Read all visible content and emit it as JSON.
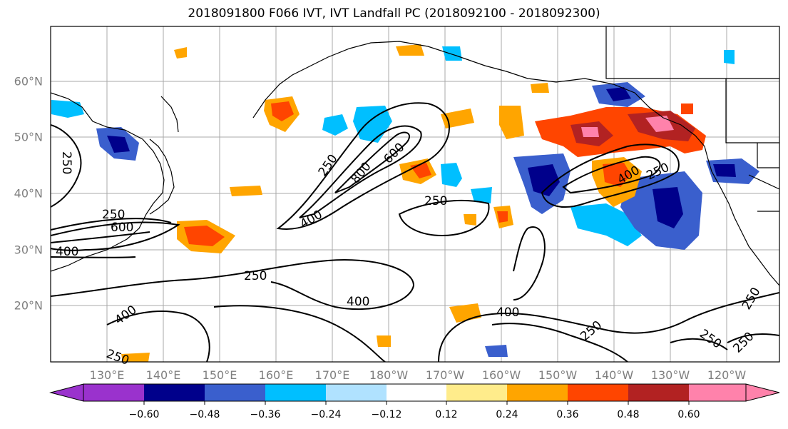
{
  "title": "2018091800 F066 IVT, IVT Landfall PC (2018092100 - 2018092300)",
  "lat_labels": [
    "60°N",
    "50°N",
    "40°N",
    "30°N",
    "20°N"
  ],
  "lon_labels": [
    "130°E",
    "140°E",
    "150°E",
    "160°E",
    "170°E",
    "180°W",
    "170°W",
    "160°W",
    "150°W",
    "140°W",
    "130°W",
    "120°W"
  ],
  "contour_labels": [
    "250",
    "400",
    "600",
    "800"
  ],
  "colorbar": {
    "ticks": [
      "−0.60",
      "−0.48",
      "−0.36",
      "−0.24",
      "−0.12",
      "0.12",
      "0.24",
      "0.36",
      "0.48",
      "0.60"
    ],
    "colors": [
      "#9a32cd",
      "#00008b",
      "#3a5fcd",
      "#00bfff",
      "#b0e2ff",
      "#ffffff",
      "#ffec8b",
      "#ffa500",
      "#ff4500",
      "#b22222",
      "#ff82ab"
    ]
  }
}
